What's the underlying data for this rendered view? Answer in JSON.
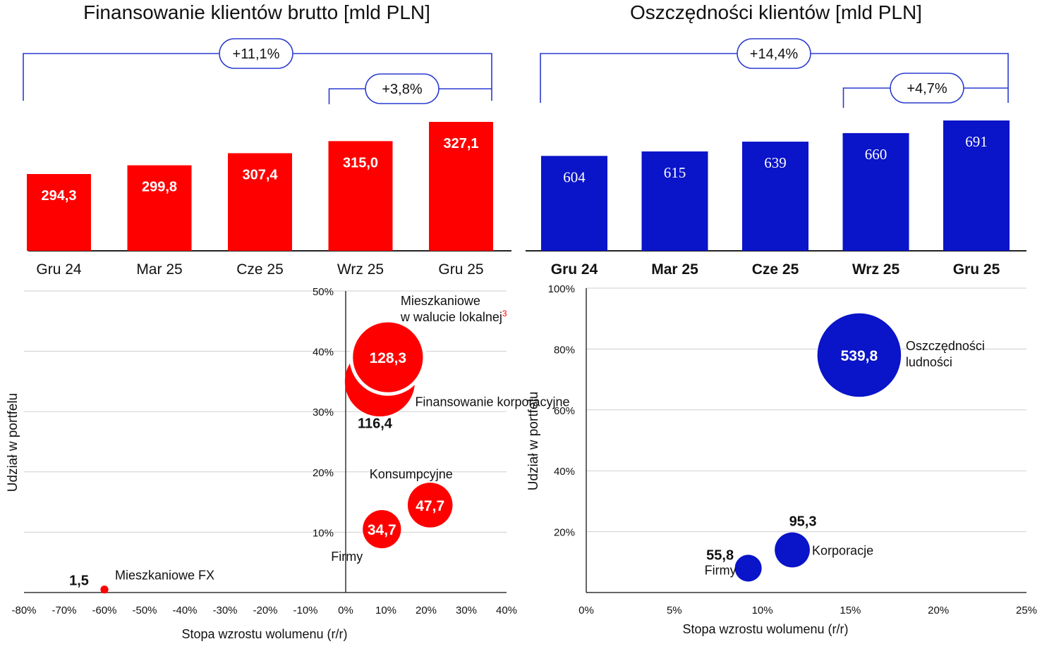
{
  "left_title": "Finansowanie klientów brutto [mld PLN]",
  "right_title": "Oszczędności klientów [mld PLN]",
  "chart_data": [
    {
      "id": "loans_bar",
      "type": "bar",
      "title": "Finansowanie klientów brutto [mld PLN]",
      "categories": [
        "Gru 24",
        "Mar 25",
        "Cze 25",
        "Wrz 25",
        "Gru 25"
      ],
      "values": [
        294.3,
        299.8,
        307.4,
        315.0,
        327.1
      ],
      "value_labels": [
        "294,3",
        "299,8",
        "307,4",
        "315,0",
        "327,1"
      ],
      "bar_color": "#ff0000",
      "brackets": [
        {
          "from": "Gru 24",
          "to": "Gru 25",
          "label": "+11,1%"
        },
        {
          "from": "Wrz 25",
          "to": "Gru 25",
          "label": "+3,8%"
        }
      ]
    },
    {
      "id": "deposits_bar",
      "type": "bar",
      "title": "Oszczędności klientów [mld PLN]",
      "categories": [
        "Gru 24",
        "Mar 25",
        "Cze 25",
        "Wrz 25",
        "Gru 25"
      ],
      "values": [
        604,
        615,
        639,
        660,
        691
      ],
      "value_labels": [
        "604",
        "615",
        "639",
        "660",
        "691"
      ],
      "bar_color": "#0a14c8",
      "brackets": [
        {
          "from": "Gru 24",
          "to": "Gru 25",
          "label": "+14,4%"
        },
        {
          "from": "Wrz 25",
          "to": "Gru 25",
          "label": "+4,7%"
        }
      ]
    },
    {
      "id": "loans_bubble",
      "type": "scatter",
      "xlabel": "Stopa wzrostu wolumenu (r/r)",
      "ylabel": "Udział w portfelu",
      "x_ticks": [
        -80,
        -70,
        -60,
        -50,
        -40,
        -30,
        -20,
        -10,
        0,
        10,
        20,
        30,
        40
      ],
      "x_tick_labels": [
        "-80%",
        "-70%",
        "-60%",
        "-50%",
        "-40%",
        "-30%",
        "-20%",
        "-10%",
        "0%",
        "10%",
        "20%",
        "30%",
        "40%"
      ],
      "y_ticks": [
        10,
        20,
        30,
        40,
        50
      ],
      "y_tick_labels": [
        "10%",
        "20%",
        "30%",
        "40%",
        "50%"
      ],
      "xlim": [
        -80,
        40
      ],
      "ylim": [
        0,
        50
      ],
      "color": "#ff0000",
      "points": [
        {
          "label": "Mieszkaniowe FX",
          "value": "1,5",
          "x": -60,
          "y": 0.5,
          "size": 1.5
        },
        {
          "label": "Firmy",
          "value": "34,7",
          "x": 9,
          "y": 10.5,
          "size": 34.7
        },
        {
          "label": "Konsumpcyjne",
          "value": "47,7",
          "x": 21,
          "y": 14.5,
          "size": 47.7
        },
        {
          "label": "Finansowanie korporacyjne",
          "value": "116,4",
          "x": 8.5,
          "y": 35,
          "size": 116.4
        },
        {
          "label": "Mieszkaniowe w walucie lokalnej",
          "label_line1": "Mieszkaniowe",
          "label_line2": "w walucie lokalnej",
          "footnote": "3",
          "value": "128,3",
          "x": 10.5,
          "y": 39,
          "size": 128.3
        }
      ]
    },
    {
      "id": "deposits_bubble",
      "type": "scatter",
      "xlabel": "Stopa wzrostu wolumenu (r/r)",
      "ylabel": "Udział w portfelu",
      "x_ticks": [
        0,
        5,
        10,
        15,
        20,
        25
      ],
      "x_tick_labels": [
        "0%",
        "5%",
        "10%",
        "15%",
        "20%",
        "25%"
      ],
      "y_ticks": [
        20,
        40,
        60,
        80,
        100
      ],
      "y_tick_labels": [
        "20%",
        "40%",
        "60%",
        "80%",
        "100%"
      ],
      "xlim": [
        0,
        25
      ],
      "ylim": [
        0,
        100
      ],
      "color": "#0a14c8",
      "points": [
        {
          "label": "Oszczędności ludności",
          "label_line1": "Oszczędności",
          "label_line2": "ludności",
          "value": "539,8",
          "x": 15.5,
          "y": 78,
          "size": 539.8
        },
        {
          "label": "Korporacje",
          "value": "95,3",
          "x": 11.7,
          "y": 14,
          "size": 95.3
        },
        {
          "label": "Firmy",
          "value": "55,8",
          "x": 9.2,
          "y": 8,
          "size": 55.8
        }
      ]
    }
  ]
}
